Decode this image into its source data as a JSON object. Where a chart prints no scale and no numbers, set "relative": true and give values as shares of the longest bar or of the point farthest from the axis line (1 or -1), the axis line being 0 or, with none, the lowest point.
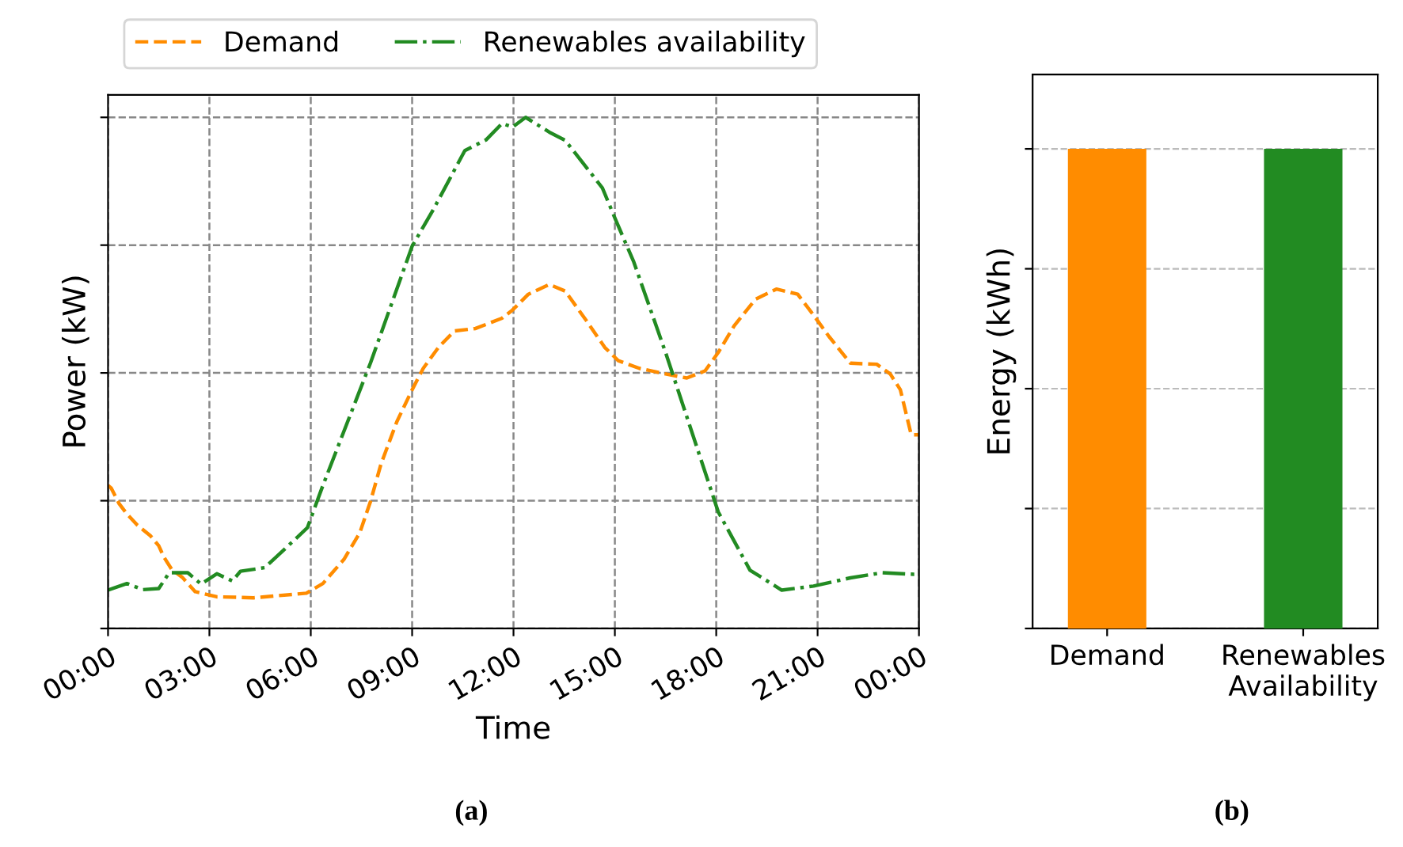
{
  "chart_data": [
    {
      "type": "line",
      "relative": true,
      "xlabel": "Time",
      "ylabel": "Power (kW)",
      "xlim": [
        0,
        24
      ],
      "xticks": [
        {
          "value": 0,
          "label": "00:00"
        },
        {
          "value": 3,
          "label": "03:00"
        },
        {
          "value": 6,
          "label": "06:00"
        },
        {
          "value": 9,
          "label": "09:00"
        },
        {
          "value": 12,
          "label": "12:00"
        },
        {
          "value": 15,
          "label": "15:00"
        },
        {
          "value": 18,
          "label": "18:00"
        },
        {
          "value": 21,
          "label": "21:00"
        },
        {
          "value": 24,
          "label": "00:00"
        }
      ],
      "tick_labels": "x",
      "grid": true,
      "legend": "top",
      "annotations": [
        "(a)"
      ],
      "series": [
        {
          "name": "Demand",
          "color": "#ff8c00",
          "line_style": "dashed",
          "x": [
            0.0,
            0.09,
            0.33,
            0.56,
            0.87,
            1.26,
            1.5,
            1.65,
            1.89,
            2.2,
            2.58,
            3.22,
            4.31,
            5.87,
            6.36,
            6.98,
            7.45,
            7.77,
            8.08,
            8.55,
            9.0,
            9.33,
            9.78,
            10.25,
            10.88,
            11.66,
            11.97,
            12.44,
            13.06,
            13.53,
            14.16,
            14.7,
            15.1,
            15.72,
            16.5,
            17.13,
            17.67,
            18.06,
            18.53,
            19.16,
            19.78,
            20.41,
            20.88,
            21.34,
            21.97,
            22.75,
            23.15,
            23.45,
            23.77,
            24.0
          ],
          "values": [
            0.28,
            0.275,
            0.244,
            0.224,
            0.202,
            0.181,
            0.162,
            0.14,
            0.115,
            0.1,
            0.072,
            0.062,
            0.06,
            0.069,
            0.088,
            0.135,
            0.187,
            0.249,
            0.322,
            0.405,
            0.467,
            0.509,
            0.55,
            0.582,
            0.587,
            0.607,
            0.623,
            0.654,
            0.673,
            0.66,
            0.602,
            0.55,
            0.524,
            0.509,
            0.498,
            0.49,
            0.504,
            0.54,
            0.592,
            0.644,
            0.664,
            0.654,
            0.613,
            0.571,
            0.519,
            0.517,
            0.498,
            0.467,
            0.379,
            0.379
          ]
        },
        {
          "name": "Renewables availability",
          "color": "#228b22",
          "line_style": "dashdot",
          "x": [
            0.0,
            0.56,
            1.03,
            1.5,
            1.81,
            2.36,
            2.75,
            3.22,
            3.68,
            3.92,
            4.64,
            5.9,
            6.36,
            7.77,
            9.0,
            9.63,
            10.56,
            11.19,
            11.66,
            11.97,
            12.36,
            13.06,
            13.53,
            14.63,
            15.02,
            15.56,
            16.5,
            18.06,
            19.0,
            19.94,
            20.88,
            21.97,
            22.91,
            23.85,
            24.0
          ],
          "values": [
            0.075,
            0.088,
            0.076,
            0.078,
            0.109,
            0.109,
            0.087,
            0.107,
            0.093,
            0.112,
            0.119,
            0.197,
            0.28,
            0.52,
            0.748,
            0.82,
            0.935,
            0.956,
            0.988,
            0.981,
            1.0,
            0.971,
            0.955,
            0.862,
            0.8,
            0.717,
            0.54,
            0.228,
            0.114,
            0.075,
            0.083,
            0.099,
            0.109,
            0.106,
            0.106
          ]
        }
      ]
    },
    {
      "type": "bar",
      "relative": true,
      "ylabel": "Energy (kWh)",
      "categories": [
        "Demand",
        "Renewables\nAvailability"
      ],
      "values": [
        1,
        1
      ],
      "colors": [
        "#ff8c00",
        "#228b22"
      ],
      "tick_labels": "x",
      "grid": "y",
      "annotations": [
        "(b)"
      ]
    }
  ]
}
